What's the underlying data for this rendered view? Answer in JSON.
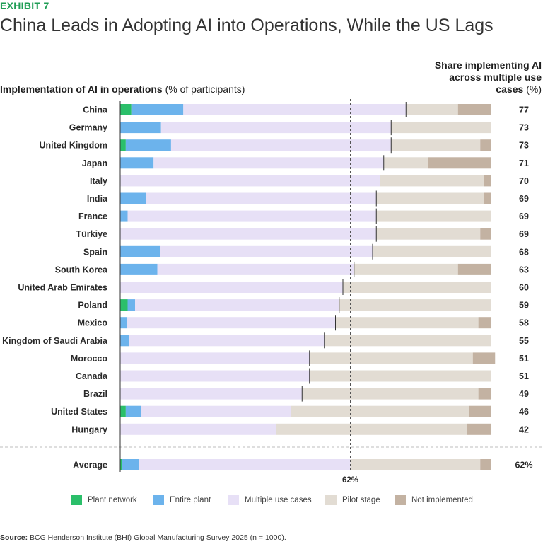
{
  "header": {
    "exhibit": "EXHIBIT 7",
    "title": "China Leads in Adopting AI into Operations, While the US Lags",
    "subtitle_bold": "Implementation of AI in operations",
    "subtitle_unit": "(% of participants)",
    "share_head_bold": "Share implementing AI  across multiple use cases",
    "share_head_unit": "(%)"
  },
  "colors": {
    "plant_network": "#2bbf6a",
    "entire_plant": "#6cb3ec",
    "multiple_use_cases": "#e7e0f6",
    "pilot_stage": "#e2dcd3",
    "not_implemented": "#c3b2a2",
    "axis": "#333333"
  },
  "chart_data": {
    "type": "bar",
    "orientation": "horizontal",
    "stacked": true,
    "title": "China Leads in Adopting AI into Operations, While the US Lags",
    "xlabel": "Implementation of AI in operations (% of participants)",
    "xlim": [
      0,
      100
    ],
    "categories": [
      "China",
      "Germany",
      "United Kingdom",
      "Japan",
      "Italy",
      "India",
      "France",
      "Türkiye",
      "Spain",
      "South Korea",
      "United Arab Emirates",
      "Poland",
      "Mexico",
      "Kingdom of Saudi Arabia",
      "Morocco",
      "Canada",
      "Brazil",
      "United States",
      "Hungary"
    ],
    "series": [
      {
        "name": "Plant network",
        "values": [
          3,
          0,
          1.5,
          0,
          0,
          0,
          0,
          0,
          0,
          0,
          0,
          2,
          0,
          0,
          0,
          0,
          0,
          1.5,
          0
        ]
      },
      {
        "name": "Entire plant",
        "values": [
          14,
          11,
          12.2,
          9,
          0,
          7,
          2,
          0,
          10.8,
          10,
          0,
          2,
          1.8,
          2.3,
          0,
          0,
          0,
          4.2,
          0
        ]
      },
      {
        "name": "Multiple use cases",
        "values": [
          60,
          62,
          59.3,
          62,
          70,
          62,
          67,
          69,
          57.2,
          53,
          60,
          55,
          56.2,
          52.7,
          51,
          51,
          49,
          40.3,
          42
        ]
      },
      {
        "name": "Pilot stage",
        "values": [
          14,
          27,
          24,
          12,
          28,
          29,
          31,
          28,
          32,
          28,
          40,
          41,
          38.5,
          45,
          44,
          49,
          47.5,
          48,
          51.5
        ]
      },
      {
        "name": "Not implemented",
        "values": [
          9,
          0,
          3,
          17,
          2,
          2,
          0,
          3,
          0,
          9,
          0,
          0,
          3.5,
          0,
          6,
          0,
          3.5,
          6,
          6.5
        ]
      }
    ],
    "share_multiple": [
      77,
      73,
      73,
      71,
      70,
      69,
      69,
      69,
      68,
      63,
      60,
      59,
      58,
      55,
      51,
      51,
      49,
      46,
      42
    ],
    "average": {
      "label": "Average",
      "values": [
        0.5,
        4.5,
        57,
        35,
        3
      ],
      "share": "62%",
      "reference_line": 62,
      "reference_label": "62%"
    },
    "legend": [
      "Plant network",
      "Entire plant",
      "Multiple use cases",
      "Pilot stage",
      "Not implemented"
    ]
  },
  "footer": {
    "source_label": "Source:",
    "source_text": "BCG Henderson Institute (BHI) Global Manufacturing Survey 2025 (n = 1000)."
  }
}
